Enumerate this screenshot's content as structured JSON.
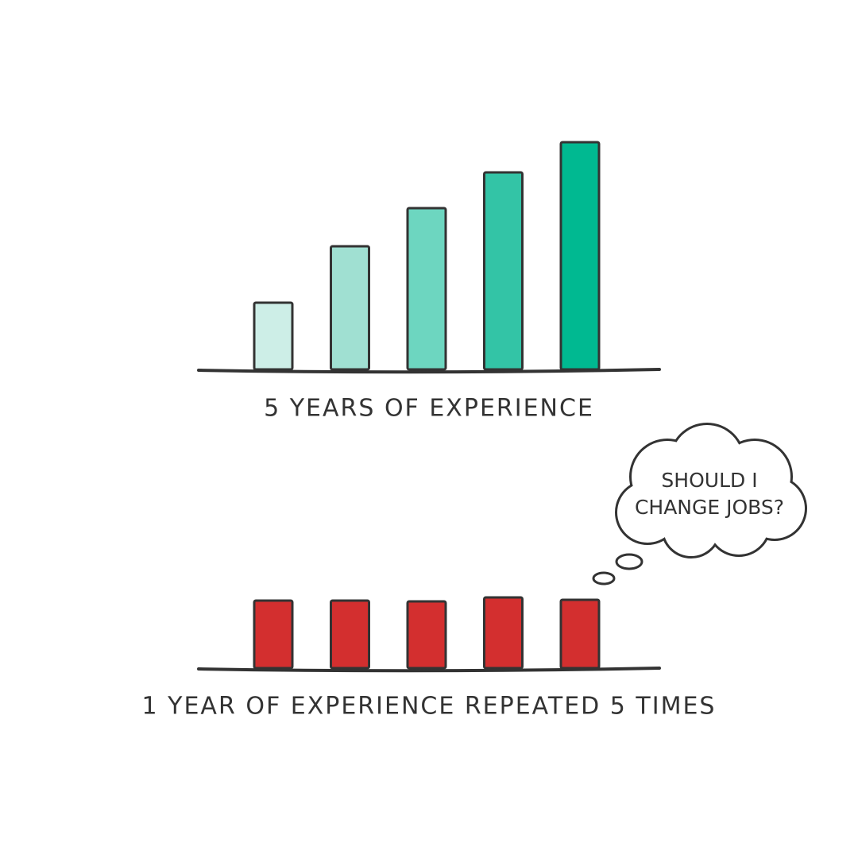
{
  "chart_data": [
    {
      "type": "bar",
      "title": "5 YEARS OF EXPERIENCE",
      "values": [
        84,
        155,
        203,
        248,
        286
      ],
      "colors": [
        "#cdeee7",
        "#a0e0d2",
        "#6dd6c0",
        "#33c4a6",
        "#00b991"
      ]
    },
    {
      "type": "bar",
      "title": "1 YEAR OF EXPERIENCE REPEATED 5 TIMES",
      "values": [
        85,
        85,
        84,
        89,
        86
      ],
      "colors": [
        "#d32f2f",
        "#d32f2f",
        "#d32f2f",
        "#d32f2f",
        "#d32f2f"
      ],
      "annotation": [
        "SHOULD I",
        "CHANGE JOBS?"
      ]
    }
  ]
}
